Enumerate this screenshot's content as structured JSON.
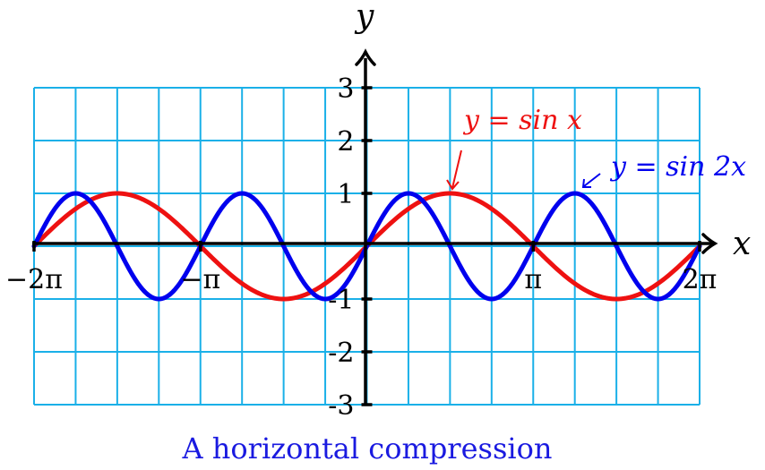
{
  "chart_data": {
    "type": "line",
    "xlabel": "x",
    "ylabel": "y",
    "xlim": [
      -6.2832,
      6.2832
    ],
    "ylim": [
      -3,
      3
    ],
    "grid": true,
    "x_ticks": [
      {
        "value": -6.2832,
        "label": "−2π"
      },
      {
        "value": -3.1416,
        "label": "−π"
      },
      {
        "value": 3.1416,
        "label": "π"
      },
      {
        "value": 6.2832,
        "label": "2π"
      }
    ],
    "y_ticks": [
      {
        "value": 3,
        "label": "3"
      },
      {
        "value": 2,
        "label": "2"
      },
      {
        "value": 1,
        "label": "1"
      },
      {
        "value": -1,
        "label": "-1"
      },
      {
        "value": -2,
        "label": "-2"
      },
      {
        "value": -3,
        "label": "-3"
      }
    ],
    "series": [
      {
        "name": "y = sin x",
        "function": "sin(x)",
        "frequency": 1,
        "color": "#ee1111"
      },
      {
        "name": "y = sin 2x",
        "function": "sin(2x)",
        "frequency": 2,
        "color": "#0000ee"
      }
    ],
    "caption": "A horizontal compression",
    "colors": {
      "grid": "#1ab0e8",
      "axes": "#000000",
      "caption": "#1a1ae0"
    }
  }
}
